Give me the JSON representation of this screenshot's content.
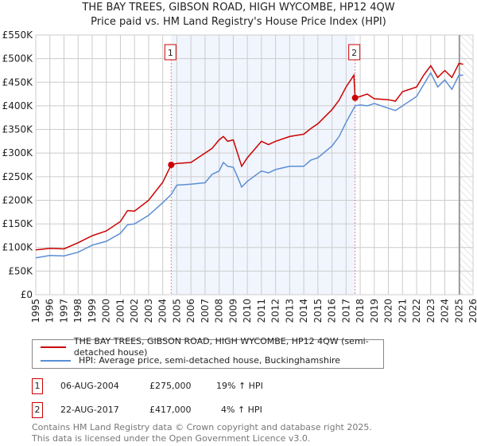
{
  "chart_data": {
    "type": "line",
    "title": "THE BAY TREES, GIBSON ROAD, HIGH WYCOMBE, HP12 4QW",
    "subtitle": "Price paid vs. HM Land Registry's House Price Index (HPI)",
    "xlim": [
      1995,
      2026
    ],
    "ylim": [
      0,
      550000
    ],
    "x_ticks": [
      "1995",
      "1996",
      "1997",
      "1998",
      "1999",
      "2000",
      "2001",
      "2002",
      "2003",
      "2004",
      "2005",
      "2006",
      "2007",
      "2008",
      "2009",
      "2010",
      "2011",
      "2012",
      "2013",
      "2014",
      "2015",
      "2016",
      "2017",
      "2018",
      "2019",
      "2020",
      "2021",
      "2022",
      "2023",
      "2024",
      "2025",
      "2026"
    ],
    "y_ticks": [
      {
        "v": 0,
        "label": "£0"
      },
      {
        "v": 50000,
        "label": "£50K"
      },
      {
        "v": 100000,
        "label": "£100K"
      },
      {
        "v": 150000,
        "label": "£150K"
      },
      {
        "v": 200000,
        "label": "£200K"
      },
      {
        "v": 250000,
        "label": "£250K"
      },
      {
        "v": 300000,
        "label": "£300K"
      },
      {
        "v": 350000,
        "label": "£350K"
      },
      {
        "v": 400000,
        "label": "£400K"
      },
      {
        "v": 450000,
        "label": "£450K"
      },
      {
        "v": 500000,
        "label": "£500K"
      },
      {
        "v": 550000,
        "label": "£550K"
      }
    ],
    "grid": true,
    "series": [
      {
        "name": "THE BAY TREES, GIBSON ROAD, HIGH WYCOMBE, HP12 4QW (semi-detached house)",
        "color": "#cc0000",
        "x": [
          1995,
          1996,
          1997,
          1998,
          1999,
          2000,
          2001,
          2001.5,
          2002,
          2003,
          2004,
          2004.6,
          2005,
          2006,
          2007,
          2007.5,
          2008,
          2008.3,
          2008.6,
          2009,
          2009.3,
          2009.6,
          2010,
          2011,
          2011.5,
          2012,
          2013,
          2014,
          2014.5,
          2015,
          2016,
          2016.5,
          2017,
          2017.55,
          2017.64,
          2018,
          2018.5,
          2019,
          2020,
          2020.5,
          2021,
          2022,
          2022.5,
          2023,
          2023.5,
          2024,
          2024.5,
          2025,
          2025.3
        ],
        "y": [
          95000,
          98000,
          97000,
          110000,
          125000,
          135000,
          155000,
          178000,
          177000,
          200000,
          238000,
          275000,
          278000,
          280000,
          300000,
          310000,
          328000,
          335000,
          325000,
          328000,
          300000,
          272000,
          290000,
          325000,
          318000,
          325000,
          335000,
          340000,
          352000,
          362000,
          392000,
          412000,
          440000,
          465000,
          417000,
          420000,
          425000,
          415000,
          413000,
          410000,
          430000,
          440000,
          465000,
          485000,
          460000,
          475000,
          460000,
          490000,
          488000
        ]
      },
      {
        "name": "HPI: Average price, semi-detached house, Buckinghamshire",
        "color": "#5b8fd4",
        "x": [
          1995,
          1996,
          1997,
          1998,
          1999,
          2000,
          2001,
          2001.5,
          2002,
          2003,
          2004,
          2004.6,
          2005,
          2006,
          2007,
          2007.5,
          2008,
          2008.3,
          2008.6,
          2009,
          2009.3,
          2009.6,
          2010,
          2011,
          2011.5,
          2012,
          2013,
          2014,
          2014.5,
          2015,
          2016,
          2016.5,
          2017,
          2017.64,
          2018,
          2018.5,
          2019,
          2020,
          2020.5,
          2021,
          2022,
          2022.5,
          2023,
          2023.5,
          2024,
          2024.5,
          2025,
          2025.3
        ],
        "y": [
          78000,
          83000,
          82000,
          90000,
          105000,
          113000,
          130000,
          148000,
          150000,
          168000,
          195000,
          212000,
          232000,
          234000,
          237000,
          255000,
          262000,
          280000,
          272000,
          270000,
          250000,
          228000,
          240000,
          262000,
          258000,
          265000,
          272000,
          272000,
          285000,
          290000,
          315000,
          335000,
          365000,
          400000,
          402000,
          400000,
          405000,
          395000,
          390000,
          400000,
          420000,
          445000,
          470000,
          440000,
          455000,
          435000,
          465000,
          465000
        ]
      }
    ],
    "annotations": [
      {
        "label": "1",
        "x": 2004.6,
        "y": 275000
      },
      {
        "label": "2",
        "x": 2017.64,
        "y": 417000
      }
    ],
    "shaded_range": [
      2004.6,
      2017.64
    ],
    "forecast_from": 2025.04
  },
  "legend": {
    "items": [
      "THE BAY TREES, GIBSON ROAD, HIGH WYCOMBE, HP12 4QW (semi-detached house)",
      "HPI: Average price, semi-detached house, Buckinghamshire"
    ]
  },
  "transactions": [
    {
      "num": "1",
      "date": "06-AUG-2004",
      "price": "£275,000",
      "hpi": "19% ↑ HPI"
    },
    {
      "num": "2",
      "date": "22-AUG-2017",
      "price": "£417,000",
      "hpi": "4% ↑ HPI"
    }
  ],
  "footer": {
    "line1": "Contains HM Land Registry data © Crown copyright and database right 2025.",
    "line2": "This data is licensed under the Open Government Licence v3.0."
  }
}
